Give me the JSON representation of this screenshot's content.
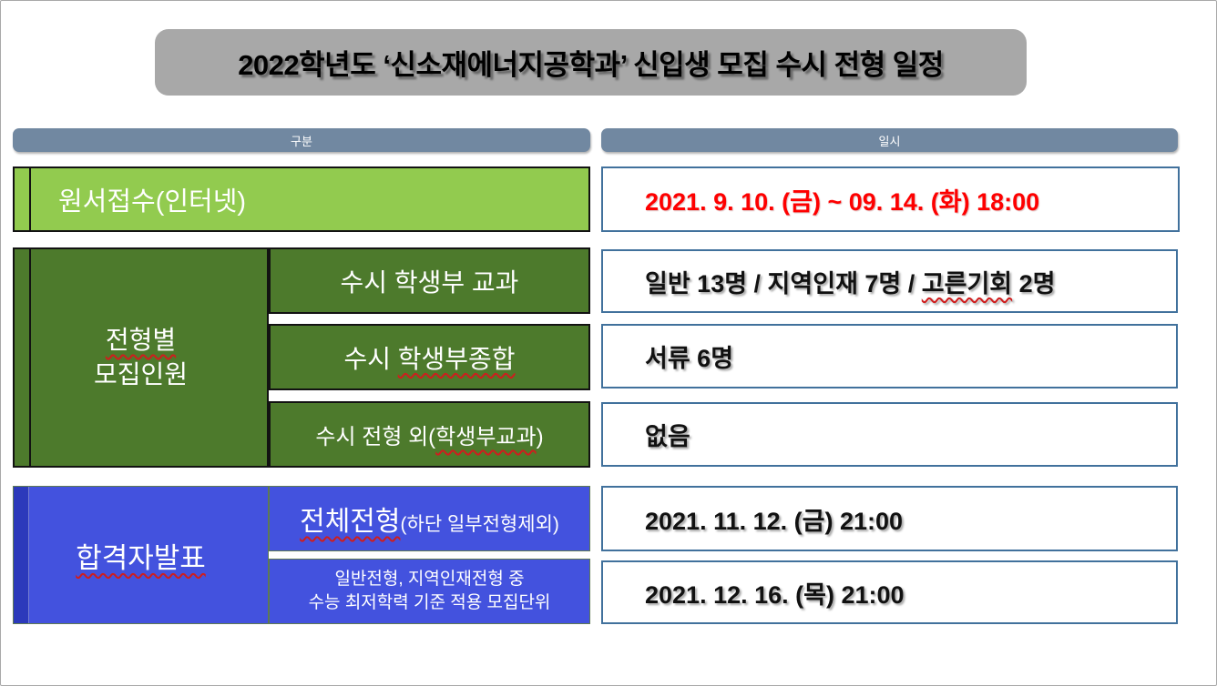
{
  "slide": {
    "title": "2022학년도 ‘신소재에너지공학과’ 신입생 모집 수시 전형 일정"
  },
  "table": {
    "headers": {
      "category": "구분",
      "datetime": "일시"
    },
    "application": {
      "label": "원서접수(인터넷)",
      "value": "2021. 9. 10. (금) ~ 09. 14. (화) 18:00"
    },
    "quota_group": {
      "label_line1": "전형별",
      "label_line2": "모집인원",
      "rows": [
        {
          "label": "수시 학생부 교과",
          "value_pre": "일반 13명 / 지역인재 7명 / ",
          "value_wavy": "고른기회",
          "value_post": " 2명"
        },
        {
          "label_pre": "수시 ",
          "label_wavy": "학생부종합",
          "value": "서류 6명"
        },
        {
          "label_pre": "수시 전형 외(",
          "label_wavy": "학생부교과",
          "label_post": ")",
          "value": "없음"
        }
      ]
    },
    "announcement_group": {
      "label": "합격자발표",
      "rows": [
        {
          "label_main": "전체전형",
          "label_note": "(하단 일부전형제외)",
          "value": "2021. 11. 12. (금) 21:00"
        },
        {
          "label_line1": "일반전형, 지역인재전형 중",
          "label_line2": "수능 최저학력 기준 적용 모집단위",
          "value": "2021. 12. 16. (목) 21:00"
        }
      ]
    }
  },
  "colors": {
    "title_bg": "#a8a8a8",
    "column_header_bg": "#7188a1",
    "light_green": "#92cb4f",
    "dark_green": "#4d7a2c",
    "blue": "#4352de",
    "blue_strip": "#2c3abb",
    "value_box_border": "#41719c",
    "highlight_red": "#fe0000",
    "spellcheck_wavy": "#cf1d1d"
  }
}
